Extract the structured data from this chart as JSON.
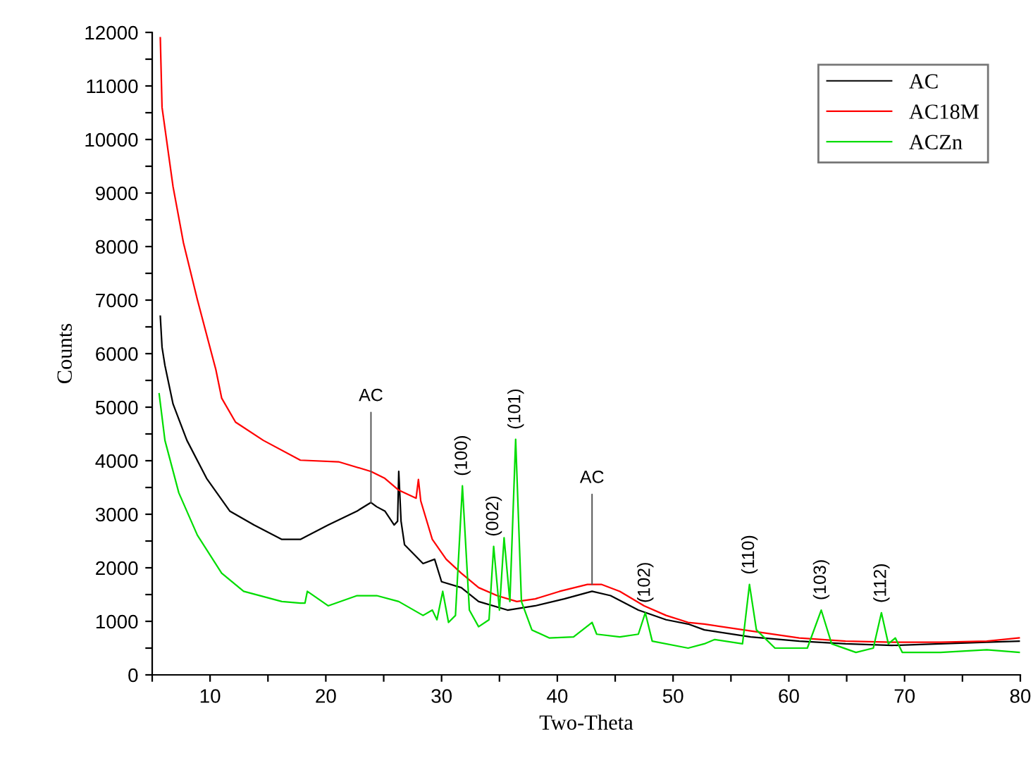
{
  "chart_data": {
    "type": "line",
    "xlabel": "Two-Theta",
    "ylabel": "Counts",
    "xlim": [
      5,
      80
    ],
    "ylim": [
      0,
      12000
    ],
    "xticks": [
      {
        "value": 5,
        "label": null
      },
      10,
      {
        "value": 15,
        "label": null
      },
      20,
      {
        "value": 25,
        "label": null
      },
      30,
      {
        "value": 35,
        "label": null
      },
      40,
      {
        "value": 45,
        "label": null
      },
      50,
      {
        "value": 55,
        "label": null
      },
      60,
      {
        "value": 65,
        "label": null
      },
      70,
      {
        "value": 75,
        "label": null
      },
      80
    ],
    "yticks": [
      0,
      {
        "value": 500,
        "label": null
      },
      1000,
      {
        "value": 1500,
        "label": null
      },
      2000,
      {
        "value": 2500,
        "label": null
      },
      3000,
      {
        "value": 3500,
        "label": null
      },
      4000,
      {
        "value": 4500,
        "label": null
      },
      5000,
      {
        "value": 5500,
        "label": null
      },
      6000,
      {
        "value": 6500,
        "label": null
      },
      7000,
      {
        "value": 7500,
        "label": null
      },
      8000,
      {
        "value": 8500,
        "label": null
      },
      9000,
      {
        "value": 9500,
        "label": null
      },
      10000,
      {
        "value": 10500,
        "label": null
      },
      11000,
      {
        "value": 11500,
        "label": null
      },
      12000
    ],
    "grid": false,
    "legend": "top right",
    "marker": "none",
    "line_style": "solid",
    "series": [
      {
        "name": "AC",
        "color": "#000000",
        "x": [
          5.7,
          5.85,
          6.1,
          6.8,
          8.0,
          9.7,
          11.7,
          13.8,
          16.2,
          17.8,
          20.2,
          22.7,
          23.9,
          24.4,
          25.1,
          25.9,
          26.2,
          26.3,
          26.5,
          26.8,
          28.4,
          29.4,
          30.0,
          31.7,
          33.2,
          35.7,
          38.1,
          40.6,
          43.0,
          44.6,
          47.0,
          49.4,
          51.3,
          52.7,
          56.7,
          60.9,
          64.9,
          68.9,
          73.1,
          77.1,
          79.9
        ],
        "values": [
          6700,
          6120,
          5780,
          5060,
          4380,
          3670,
          3060,
          2800,
          2530,
          2530,
          2800,
          3060,
          3220,
          3140,
          3060,
          2800,
          2870,
          3800,
          2870,
          2430,
          2080,
          2160,
          1740,
          1630,
          1370,
          1210,
          1290,
          1420,
          1560,
          1480,
          1210,
          1030,
          950,
          840,
          710,
          630,
          580,
          550,
          580,
          610,
          630
        ]
      },
      {
        "name": "AC18M",
        "color": "#ff0000",
        "x": [
          5.7,
          5.85,
          6.8,
          7.7,
          8.9,
          10.5,
          11.0,
          12.2,
          14.6,
          17.8,
          21.1,
          23.9,
          25.1,
          26.3,
          27.8,
          28.0,
          28.2,
          29.2,
          30.4,
          31.7,
          33.2,
          34.8,
          36.5,
          38.1,
          40.2,
          42.6,
          43.8,
          45.4,
          47.5,
          49.4,
          51.3,
          52.7,
          56.7,
          60.9,
          64.9,
          68.9,
          73.1,
          77.1,
          79.9
        ],
        "values": [
          11900,
          10600,
          9120,
          8070,
          7010,
          5700,
          5170,
          4720,
          4380,
          4010,
          3980,
          3800,
          3670,
          3450,
          3300,
          3650,
          3250,
          2530,
          2160,
          1900,
          1630,
          1480,
          1370,
          1420,
          1560,
          1690,
          1690,
          1560,
          1290,
          1110,
          980,
          950,
          820,
          690,
          630,
          610,
          610,
          630,
          690
        ]
      },
      {
        "name": "ACZn",
        "color": "#00dd00",
        "x": [
          5.6,
          6.1,
          7.3,
          8.9,
          11.0,
          12.9,
          16.2,
          17.8,
          18.2,
          18.4,
          20.2,
          22.7,
          24.4,
          26.3,
          28.4,
          29.2,
          29.6,
          30.1,
          30.6,
          31.2,
          31.8,
          32.4,
          33.2,
          34.1,
          34.5,
          35.0,
          35.4,
          35.9,
          36.4,
          36.9,
          37.8,
          39.3,
          41.4,
          43.0,
          43.4,
          45.4,
          47.0,
          47.6,
          48.2,
          51.3,
          52.7,
          53.6,
          56.0,
          56.6,
          57.2,
          58.8,
          61.6,
          62.8,
          63.7,
          65.8,
          67.3,
          68.0,
          68.6,
          69.2,
          69.8,
          73.1,
          77.1,
          79.9
        ],
        "values": [
          5250,
          4380,
          3400,
          2610,
          1900,
          1560,
          1370,
          1340,
          1340,
          1560,
          1290,
          1480,
          1480,
          1370,
          1110,
          1210,
          1030,
          1560,
          980,
          1110,
          3530,
          1210,
          900,
          1030,
          2400,
          1210,
          2560,
          1370,
          4400,
          1370,
          840,
          690,
          710,
          980,
          760,
          710,
          760,
          1160,
          630,
          500,
          580,
          660,
          580,
          1690,
          840,
          500,
          500,
          1210,
          580,
          420,
          500,
          1160,
          580,
          690,
          420,
          420,
          470,
          420
        ]
      }
    ],
    "annotations": [
      {
        "text": "AC",
        "x": 23.9,
        "y": 3220
      },
      {
        "text": "(100)",
        "x": 31.8,
        "y": 3530
      },
      {
        "text": "(002)",
        "x": 34.5,
        "y": 2400
      },
      {
        "text": "(101)",
        "x": 36.4,
        "y": 4400
      },
      {
        "text": "AC",
        "x": 43.0,
        "y": 1690
      },
      {
        "text": "(102)",
        "x": 47.6,
        "y": 1160
      },
      {
        "text": "(110)",
        "x": 56.6,
        "y": 1690
      },
      {
        "text": "(103)",
        "x": 62.8,
        "y": 1210
      },
      {
        "text": "(112)",
        "x": 68.0,
        "y": 1160
      }
    ]
  }
}
